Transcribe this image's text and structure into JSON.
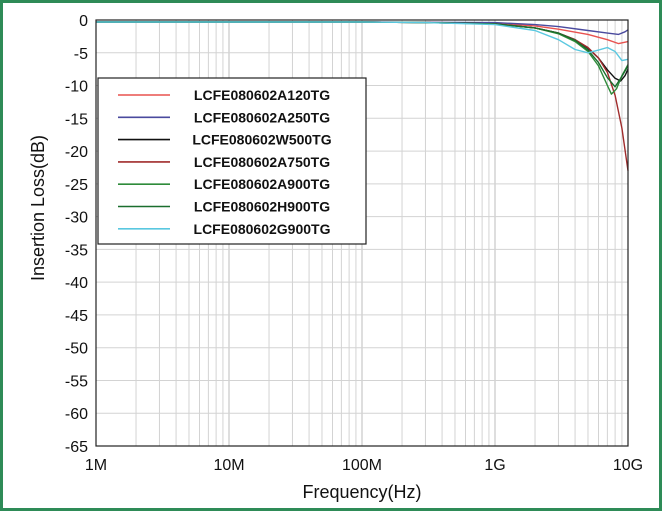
{
  "chart_data": {
    "type": "line",
    "title": "",
    "xlabel": "Frequency(Hz)",
    "ylabel": "Insertion Loss(dB)",
    "xscale": "log",
    "xlim": [
      1000000,
      10000000000
    ],
    "ylim": [
      -65,
      0
    ],
    "x_tick_labels": [
      "1M",
      "10M",
      "100M",
      "1G",
      "10G"
    ],
    "y_tick_labels": [
      "0",
      "-5",
      "-10",
      "-15",
      "-20",
      "-25",
      "-30",
      "-35",
      "-40",
      "-45",
      "-50",
      "-55",
      "-60",
      "-65"
    ],
    "grid": true,
    "legend_position": "top-left",
    "series": [
      {
        "name": "LCFE080602A120TG",
        "color": "#e8524f",
        "x": [
          1000000,
          10000000,
          100000000,
          300000000,
          1000000000,
          2000000000,
          3000000000,
          5000000000,
          7000000000,
          8500000000,
          10000000000
        ],
        "y": [
          -0.3,
          -0.3,
          -0.3,
          -0.35,
          -0.5,
          -0.9,
          -1.4,
          -2.2,
          -3.0,
          -3.6,
          -3.3
        ]
      },
      {
        "name": "LCFE080602A250TG",
        "color": "#4a4a9e",
        "x": [
          1000000,
          10000000,
          100000000,
          300000000,
          1000000000,
          2000000000,
          3000000000,
          5000000000,
          7000000000,
          8500000000,
          9500000000,
          10000000000
        ],
        "y": [
          -0.3,
          -0.3,
          -0.3,
          -0.35,
          -0.4,
          -0.7,
          -1.0,
          -1.6,
          -2.0,
          -2.2,
          -1.8,
          -1.5
        ]
      },
      {
        "name": "LCFE080602W500TG",
        "color": "#111111",
        "x": [
          1000000,
          10000000,
          100000000,
          300000000,
          1000000000,
          2000000000,
          3000000000,
          4000000000,
          5000000000,
          6000000000,
          7000000000,
          8000000000,
          8800000000,
          9500000000,
          10000000000
        ],
        "y": [
          -0.3,
          -0.3,
          -0.3,
          -0.4,
          -0.6,
          -1.2,
          -2.0,
          -3.0,
          -4.3,
          -5.8,
          -7.6,
          -8.9,
          -9.3,
          -8.5,
          -7.5
        ]
      },
      {
        "name": "LCFE080602A750TG",
        "color": "#a02c2c",
        "x": [
          1000000,
          10000000,
          100000000,
          300000000,
          1000000000,
          2000000000,
          3000000000,
          4000000000,
          5000000000,
          6000000000,
          7000000000,
          8000000000,
          9000000000,
          10000000000
        ],
        "y": [
          -0.3,
          -0.3,
          -0.3,
          -0.4,
          -0.6,
          -1.2,
          -2.0,
          -3.0,
          -4.2,
          -5.8,
          -8.0,
          -11.5,
          -16.5,
          -23.0
        ]
      },
      {
        "name": "LCFE080602A900TG",
        "color": "#2e8b3a",
        "x": [
          1000000,
          10000000,
          100000000,
          300000000,
          1000000000,
          2000000000,
          3000000000,
          4000000000,
          5000000000,
          6000000000,
          7000000000,
          7500000000,
          8200000000,
          9000000000,
          10000000000
        ],
        "y": [
          -0.3,
          -0.3,
          -0.3,
          -0.4,
          -0.6,
          -1.2,
          -2.1,
          -3.3,
          -4.8,
          -7.0,
          -10.0,
          -11.3,
          -10.5,
          -8.5,
          -6.8
        ]
      },
      {
        "name": "LCFE080602H900TG",
        "color": "#1a6e2e",
        "x": [
          1000000,
          10000000,
          100000000,
          300000000,
          1000000000,
          2000000000,
          3000000000,
          4000000000,
          5000000000,
          6000000000,
          7000000000,
          8000000000,
          9000000000,
          10000000000
        ],
        "y": [
          -0.3,
          -0.3,
          -0.3,
          -0.4,
          -0.6,
          -1.2,
          -2.0,
          -3.1,
          -4.6,
          -6.5,
          -8.8,
          -10.2,
          -8.6,
          -7.0
        ]
      },
      {
        "name": "LCFE080602G900TG",
        "color": "#5ac8e0",
        "x": [
          1000000,
          10000000,
          100000000,
          300000000,
          1000000000,
          2000000000,
          3000000000,
          4000000000,
          5000000000,
          6000000000,
          7000000000,
          8000000000,
          9000000000,
          10000000000
        ],
        "y": [
          -0.3,
          -0.3,
          -0.3,
          -0.4,
          -0.7,
          -1.6,
          -3.0,
          -4.5,
          -5.0,
          -4.6,
          -4.2,
          -4.8,
          -6.2,
          -6.0
        ]
      }
    ]
  }
}
